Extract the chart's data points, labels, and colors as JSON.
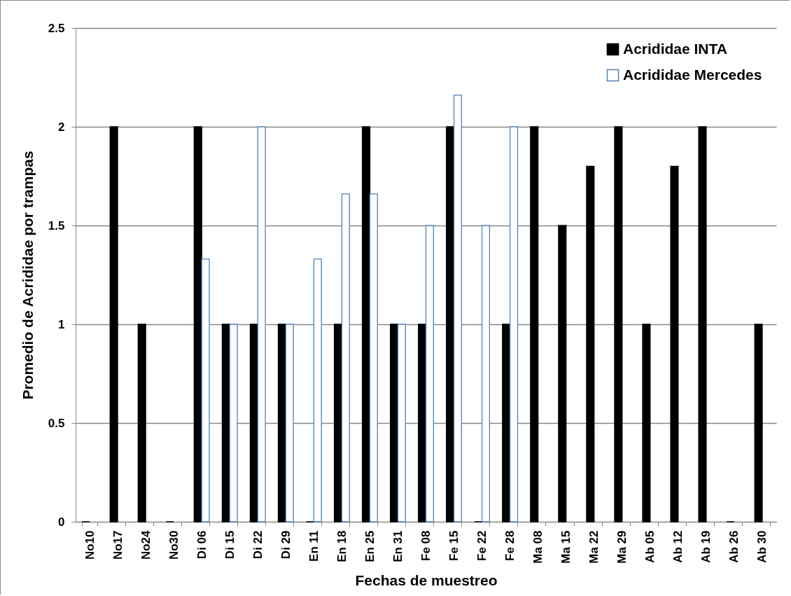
{
  "chart_data": {
    "type": "bar",
    "xlabel": "Fechas de muestreo",
    "ylabel": "Promedio de Acrididae por trampas",
    "categories": [
      "No10",
      "No17",
      "No24",
      "No30",
      "Di 06",
      "Di 15",
      "Di 22",
      "Di 29",
      "En 11",
      "En 18",
      "En 25",
      "En 31",
      "Fe 08",
      "Fe 15",
      "Fe 22",
      "Fe 28",
      "Ma 08",
      "Ma 15",
      "Ma 22",
      "Ma 29",
      "Ab 05",
      "Ab 12",
      "Ab 19",
      "Ab 26",
      "Ab 30"
    ],
    "series": [
      {
        "name": "Acrididae  INTA",
        "color": "#000000",
        "values": [
          0,
          2,
          1,
          0,
          2,
          1,
          1,
          1,
          0,
          1,
          2,
          1,
          1,
          2,
          0,
          1,
          2,
          1.5,
          1.8,
          2,
          1,
          1.8,
          2,
          0,
          1
        ]
      },
      {
        "name": "Acrididae Mercedes",
        "color": "#4f81bd",
        "values": [
          null,
          null,
          null,
          null,
          1.33,
          1,
          2,
          1,
          1.33,
          1.66,
          1.66,
          1,
          1.5,
          2.16,
          1.5,
          2,
          null,
          null,
          null,
          null,
          null,
          null,
          null,
          null,
          null
        ]
      }
    ],
    "ylim": [
      0,
      2.5
    ],
    "yticks": [
      0,
      0.5,
      1,
      1.5,
      2,
      2.5
    ],
    "grid": "y",
    "legend": "top right"
  }
}
